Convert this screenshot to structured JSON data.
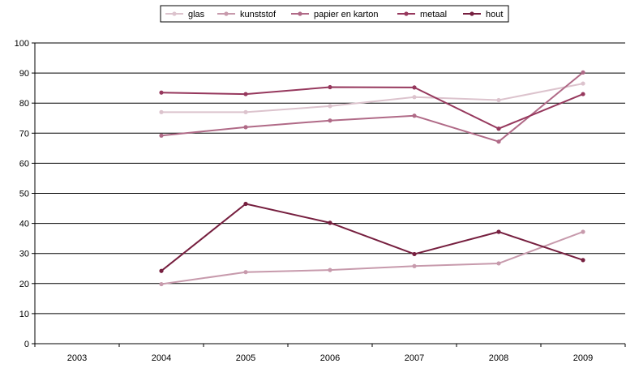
{
  "chart_data": {
    "type": "line",
    "categories": [
      "2003",
      "2004",
      "2005",
      "2006",
      "2007",
      "2008",
      "2009"
    ],
    "ylim": [
      0,
      100
    ],
    "yticks": [
      0,
      10,
      20,
      30,
      40,
      50,
      60,
      70,
      80,
      90,
      100
    ],
    "grid": "horizontal",
    "legend_position": "top",
    "series": [
      {
        "name": "glas",
        "color": "#dcc3cd",
        "values": [
          null,
          77,
          77,
          79,
          82,
          81,
          86.5
        ]
      },
      {
        "name": "kunststof",
        "color": "#c79aac",
        "values": [
          null,
          19.8,
          23.8,
          24.5,
          25.8,
          26.7,
          37.2
        ]
      },
      {
        "name": "papier en karton",
        "color": "#b06a87",
        "values": [
          null,
          69.2,
          72,
          74.2,
          75.8,
          67.2,
          90.2
        ]
      },
      {
        "name": "metaal",
        "color": "#96385d",
        "values": [
          null,
          83.5,
          83,
          85.3,
          85.2,
          71.5,
          83
        ]
      },
      {
        "name": "hout",
        "color": "#761f3f",
        "values": [
          null,
          24.2,
          46.5,
          40.2,
          29.8,
          37.2,
          27.8
        ]
      }
    ]
  }
}
